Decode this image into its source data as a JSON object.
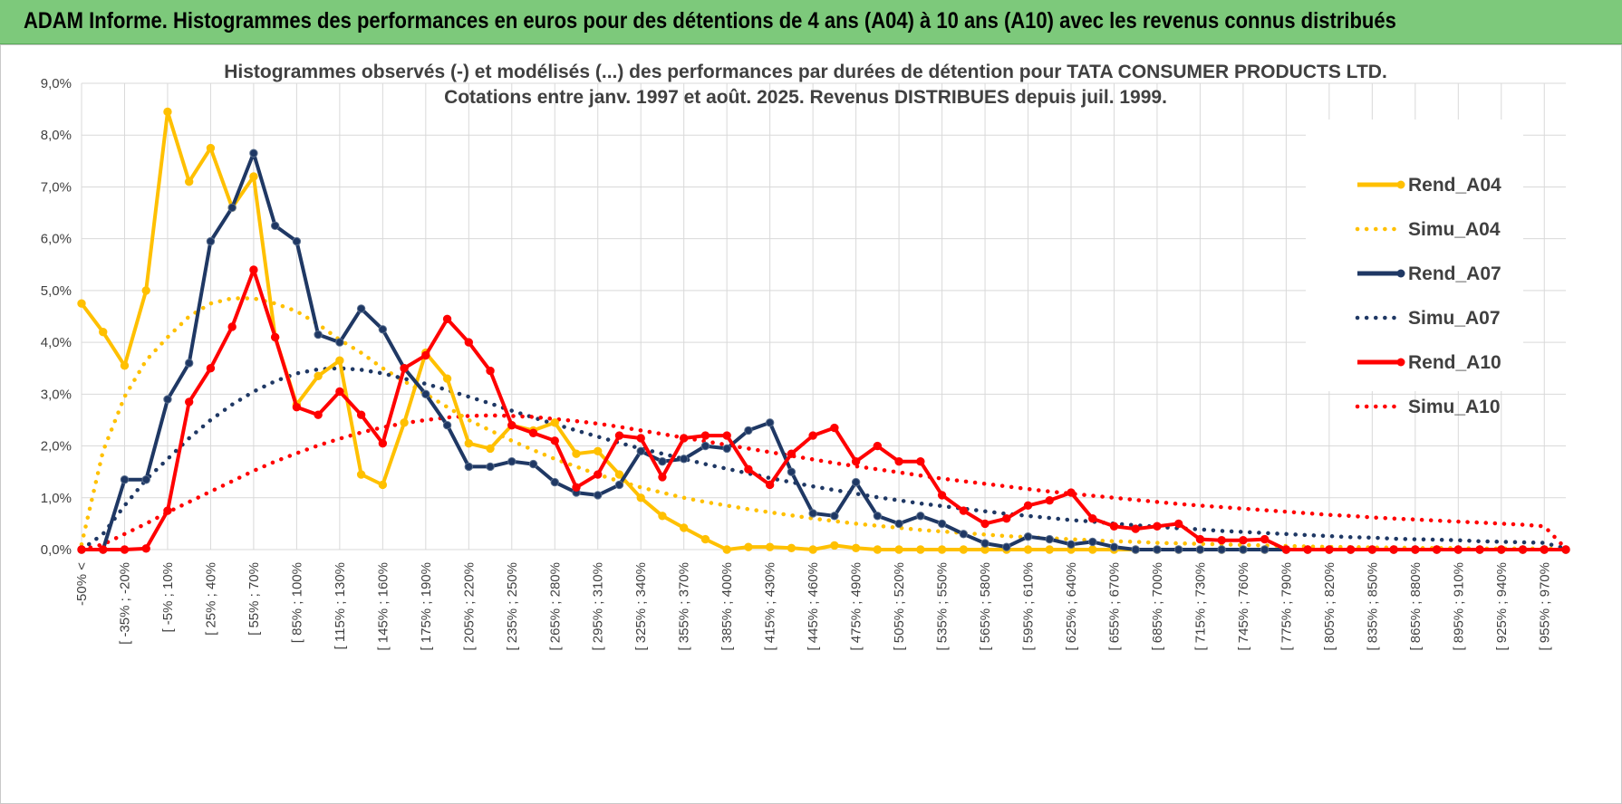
{
  "banner": {
    "title": "ADAM Informe. Histogrammes des performances en euros pour des détentions de 4 ans (A04) à 10 ans (A10) avec les revenus connus distribués"
  },
  "chart_data": {
    "type": "line",
    "title": "Histogrammes observés (-) et modélisés (...) des performances par durées de détention pour TATA CONSUMER PRODUCTS LTD.",
    "subtitle": "Cotations entre janv. 1997 et août. 2025. Revenus DISTRIBUES depuis juil. 1999.",
    "xlabel": "",
    "ylabel": "",
    "ylim": [
      0,
      9
    ],
    "yticks": [
      "0,0%",
      "1,0%",
      "2,0%",
      "3,0%",
      "4,0%",
      "5,0%",
      "6,0%",
      "7,0%",
      "8,0%",
      "9,0%"
    ],
    "grid": true,
    "legend_position": "right",
    "x_labels": [
      "-50% <",
      "[ -35% ; -20%",
      "[ -5% ; 10%",
      "[ 25% ; 40%",
      "[ 55% ; 70%",
      "[ 85% ; 100%",
      "[ 115% ; 130%",
      "[ 145% ; 160%",
      "[ 175% ; 190%",
      "[ 205% ; 220%",
      "[ 235% ; 250%",
      "[ 265% ; 280%",
      "[ 295% ; 310%",
      "[ 325% ; 340%",
      "[ 355% ; 370%",
      "[ 385% ; 400%",
      "[ 415% ; 430%",
      "[ 445% ; 460%",
      "[ 475% ; 490%",
      "[ 505% ; 520%",
      "[ 535% ; 550%",
      "[ 565% ; 580%",
      "[ 595% ; 610%",
      "[ 625% ; 640%",
      "[ 655% ; 670%",
      "[ 685% ; 700%",
      "[ 715% ; 730%",
      "[ 745% ; 760%",
      "[ 775% ; 790%",
      "[ 805% ; 820%",
      "[ 835% ; 850%",
      "[ 865% ; 880%",
      "[ 895% ; 910%",
      "[ 925% ; 940%",
      "[ 955% ; 970%"
    ],
    "series": [
      {
        "name": "Rend_A04",
        "style": "solid",
        "color": "#ffc000",
        "values": [
          4.75,
          4.2,
          3.55,
          5.0,
          8.45,
          7.1,
          7.75,
          6.6,
          7.2,
          4.1,
          2.8,
          3.35,
          3.65,
          1.45,
          1.25,
          2.45,
          3.8,
          3.3,
          2.05,
          1.95,
          2.4,
          2.3,
          2.45,
          1.85,
          1.9,
          1.45,
          1.0,
          0.65,
          0.42,
          0.2,
          0.0,
          0.05,
          0.05,
          0.03,
          0.0,
          0.08,
          0.03,
          0.0,
          0.0,
          0.0,
          0.0,
          0.0,
          0.0,
          0.0,
          0.0,
          0.0,
          0.0,
          0.0,
          0.0,
          0.0,
          0.0,
          0.0,
          0.0,
          0.0,
          0.0,
          0.0,
          0.0,
          0.0,
          0.0,
          0.0,
          0.0,
          0.0,
          0.0,
          0.0,
          0.0,
          0.0,
          0.0,
          0.0,
          0.0,
          0.0
        ]
      },
      {
        "name": "Simu_A04",
        "style": "dotted",
        "color": "#ffc000",
        "values": [
          0.1,
          1.9,
          2.95,
          3.65,
          4.1,
          4.5,
          4.75,
          4.85,
          4.85,
          4.75,
          4.6,
          4.35,
          4.05,
          3.8,
          3.5,
          3.25,
          3.0,
          2.75,
          2.5,
          2.3,
          2.1,
          1.92,
          1.75,
          1.6,
          1.45,
          1.32,
          1.2,
          1.1,
          1.0,
          0.92,
          0.85,
          0.78,
          0.72,
          0.66,
          0.6,
          0.55,
          0.5,
          0.46,
          0.42,
          0.38,
          0.35,
          0.32,
          0.29,
          0.26,
          0.24,
          0.22,
          0.2,
          0.18,
          0.16,
          0.15,
          0.13,
          0.12,
          0.11,
          0.1,
          0.09,
          0.08,
          0.07,
          0.06,
          0.05,
          0.05,
          0.04,
          0.04,
          0.03,
          0.03,
          0.03,
          0.02,
          0.02,
          0.02,
          0.02,
          0.01
        ]
      },
      {
        "name": "Rend_A07",
        "style": "solid",
        "color": "#1f3864",
        "values": [
          0.0,
          0.0,
          1.35,
          1.35,
          2.9,
          3.6,
          5.95,
          6.6,
          7.65,
          6.25,
          5.95,
          4.15,
          4.0,
          4.65,
          4.25,
          3.5,
          3.0,
          2.4,
          1.6,
          1.6,
          1.7,
          1.65,
          1.3,
          1.1,
          1.05,
          1.25,
          1.9,
          1.7,
          1.75,
          2.0,
          1.95,
          2.3,
          2.45,
          1.5,
          0.7,
          0.65,
          1.3,
          0.65,
          0.5,
          0.65,
          0.5,
          0.3,
          0.12,
          0.05,
          0.25,
          0.2,
          0.1,
          0.15,
          0.05,
          0.0,
          0.0,
          0.0,
          0.0,
          0.0,
          0.0,
          0.0,
          0.0,
          0.0,
          0.0,
          0.0,
          0.0,
          0.0,
          0.0,
          0.0,
          0.0,
          0.0,
          0.0,
          0.0,
          0.0,
          0.0
        ]
      },
      {
        "name": "Simu_A07",
        "style": "dotted",
        "color": "#1f3864",
        "values": [
          0.0,
          0.3,
          0.85,
          1.35,
          1.75,
          2.15,
          2.5,
          2.8,
          3.05,
          3.25,
          3.4,
          3.48,
          3.5,
          3.47,
          3.4,
          3.3,
          3.2,
          3.08,
          2.95,
          2.82,
          2.68,
          2.55,
          2.42,
          2.3,
          2.18,
          2.06,
          1.95,
          1.85,
          1.75,
          1.65,
          1.56,
          1.47,
          1.38,
          1.3,
          1.22,
          1.15,
          1.08,
          1.01,
          0.95,
          0.89,
          0.84,
          0.79,
          0.74,
          0.69,
          0.65,
          0.61,
          0.57,
          0.54,
          0.5,
          0.47,
          0.44,
          0.41,
          0.39,
          0.36,
          0.34,
          0.32,
          0.3,
          0.28,
          0.26,
          0.24,
          0.23,
          0.21,
          0.2,
          0.19,
          0.18,
          0.16,
          0.15,
          0.14,
          0.13,
          0.02
        ]
      },
      {
        "name": "Rend_A10",
        "style": "solid",
        "color": "#ff0000",
        "values": [
          0.0,
          0.0,
          0.0,
          0.02,
          0.75,
          2.85,
          3.5,
          4.3,
          5.4,
          4.1,
          2.75,
          2.6,
          3.05,
          2.6,
          2.05,
          3.5,
          3.75,
          4.45,
          4.0,
          3.45,
          2.4,
          2.25,
          2.1,
          1.2,
          1.45,
          2.2,
          2.15,
          1.4,
          2.15,
          2.2,
          2.2,
          1.55,
          1.25,
          1.85,
          2.2,
          2.35,
          1.7,
          2.0,
          1.7,
          1.7,
          1.05,
          0.75,
          0.5,
          0.6,
          0.85,
          0.95,
          1.1,
          0.6,
          0.45,
          0.4,
          0.45,
          0.5,
          0.2,
          0.18,
          0.18,
          0.2,
          0.0,
          0.0,
          0.0,
          0.0,
          0.0,
          0.0,
          0.0,
          0.0,
          0.0,
          0.0,
          0.0,
          0.0,
          0.0,
          0.0
        ]
      },
      {
        "name": "Simu_A10",
        "style": "dotted",
        "color": "#ff0000",
        "values": [
          0.0,
          0.1,
          0.3,
          0.5,
          0.72,
          0.92,
          1.12,
          1.32,
          1.52,
          1.7,
          1.86,
          2.01,
          2.14,
          2.26,
          2.36,
          2.44,
          2.5,
          2.55,
          2.58,
          2.59,
          2.58,
          2.56,
          2.52,
          2.48,
          2.43,
          2.37,
          2.3,
          2.23,
          2.16,
          2.09,
          2.02,
          1.95,
          1.88,
          1.81,
          1.74,
          1.67,
          1.61,
          1.55,
          1.49,
          1.43,
          1.37,
          1.32,
          1.27,
          1.22,
          1.17,
          1.12,
          1.08,
          1.04,
          1.0,
          0.96,
          0.92,
          0.88,
          0.85,
          0.82,
          0.79,
          0.76,
          0.73,
          0.7,
          0.67,
          0.65,
          0.62,
          0.6,
          0.58,
          0.56,
          0.54,
          0.52,
          0.5,
          0.48,
          0.45,
          0.02
        ]
      }
    ]
  }
}
